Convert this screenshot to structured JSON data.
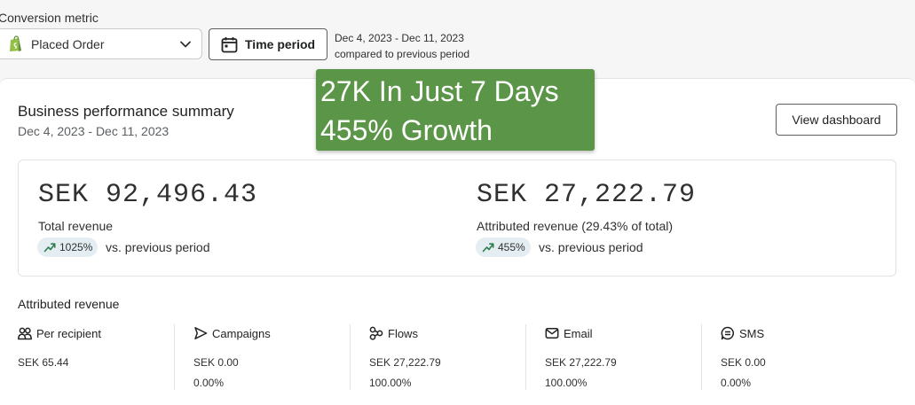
{
  "conversion": {
    "label": "Conversion metric",
    "selected": "Placed Order"
  },
  "time_button": {
    "label": "Time period"
  },
  "range": {
    "dates": "Dec 4, 2023 - Dec 11, 2023",
    "compare": "compared to previous period"
  },
  "overlay": {
    "line1": "27K In Just 7 Days",
    "line2": "455% Growth"
  },
  "summary": {
    "title": "Business performance summary",
    "date": "Dec 4, 2023 - Dec 11, 2023",
    "view_button": "View dashboard",
    "total": {
      "value": "SEK 92,496.43",
      "label": "Total revenue",
      "change": "1025%",
      "suffix": "vs. previous period"
    },
    "attributed": {
      "value": "SEK 27,222.79",
      "label": "Attributed revenue (29.43% of total)",
      "change": "455%",
      "suffix": "vs. previous period"
    }
  },
  "attributed_revenue": {
    "title": "Attributed revenue",
    "columns": [
      {
        "name": "Per recipient",
        "value": "SEK 65.44",
        "pct": "",
        "icon": "people-icon"
      },
      {
        "name": "Campaigns",
        "value": "SEK 0.00",
        "pct": "0.00%",
        "icon": "send-icon"
      },
      {
        "name": "Flows",
        "value": "SEK 27,222.79",
        "pct": "100.00%",
        "icon": "flow-icon"
      },
      {
        "name": "Email",
        "value": "SEK 27,222.79",
        "pct": "100.00%",
        "icon": "email-icon"
      },
      {
        "name": "SMS",
        "value": "SEK 0.00",
        "pct": "0.00%",
        "icon": "sms-icon"
      }
    ]
  },
  "colors": {
    "overlay_green": "#5b9547",
    "trend_green": "#2e7d4f",
    "pill_bg": "#e4eef2",
    "shopify_green": "#95bf47"
  }
}
